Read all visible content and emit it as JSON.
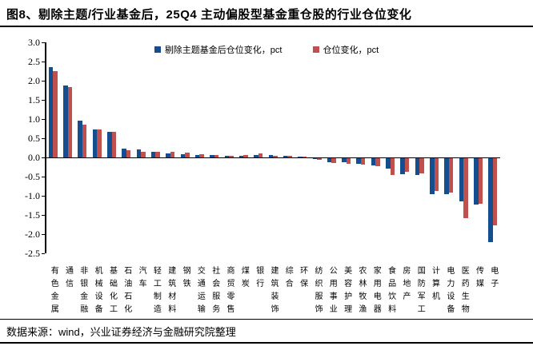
{
  "title": "图8、剔除主题/行业基金后，25Q4 主动偏股型基金重仓股的行业仓位变化",
  "footer": "数据来源：wind，兴业证券经济与金融研究院整理",
  "colors": {
    "series_blue": "#154E8F",
    "series_red": "#C0504D",
    "axis": "#000000"
  },
  "chart_data": {
    "type": "bar",
    "title": "",
    "xlabel": "",
    "ylabel": "",
    "ylim": [
      -2.5,
      3.0
    ],
    "ytick_step": 0.5,
    "yticks": [
      "3.0",
      "2.5",
      "2.0",
      "1.5",
      "1.0",
      "0.5",
      "0.0",
      "-0.5",
      "-1.0",
      "-1.5",
      "-2.0",
      "-2.5"
    ],
    "grid": false,
    "legend_position": "top-center",
    "categories": [
      "有色金属",
      "通信",
      "非银金融",
      "机械设备",
      "基础化工",
      "石油石化",
      "汽车",
      "轻工制造",
      "建筑材料",
      "钢铁",
      "交通运输",
      "社会服务",
      "商贸零售",
      "煤炭",
      "银行",
      "建筑装饰",
      "综合",
      "环保",
      "纺织服饰",
      "公用事业",
      "美容护理",
      "农林牧渔",
      "家用电器",
      "食品饮料",
      "房地产",
      "国防军工",
      "计算机",
      "电力设备",
      "医药生物",
      "传媒",
      "电子"
    ],
    "series": [
      {
        "name": "剔除主题基金后仓位变化，pct",
        "color": "#154E8F",
        "values": [
          2.36,
          1.88,
          0.96,
          0.73,
          0.67,
          0.23,
          0.21,
          0.14,
          0.11,
          0.09,
          0.07,
          0.06,
          0.05,
          0.05,
          0.06,
          0.06,
          0.05,
          0.03,
          -0.03,
          -0.1,
          -0.11,
          -0.15,
          -0.18,
          -0.27,
          -0.41,
          -0.44,
          -0.93,
          -0.94,
          -1.12,
          -1.21,
          -2.18
        ]
      },
      {
        "name": "仓位变化，pct",
        "color": "#C0504D",
        "values": [
          2.26,
          1.83,
          0.86,
          0.72,
          0.67,
          0.19,
          0.15,
          0.15,
          0.14,
          0.13,
          0.08,
          0.06,
          0.05,
          0.06,
          0.11,
          0.05,
          0.04,
          0.02,
          -0.05,
          -0.13,
          -0.14,
          -0.16,
          -0.2,
          -0.43,
          -0.35,
          -0.39,
          -0.85,
          -0.9,
          -1.56,
          -1.18,
          -1.74
        ]
      }
    ]
  }
}
